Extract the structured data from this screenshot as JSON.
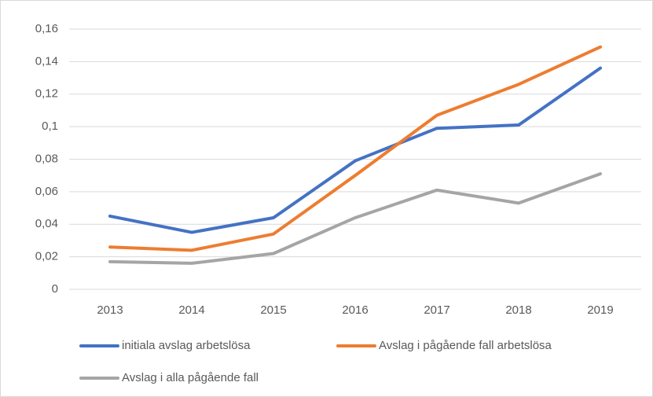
{
  "chart_data": {
    "type": "line",
    "categories": [
      "2013",
      "2014",
      "2015",
      "2016",
      "2017",
      "2018",
      "2019"
    ],
    "series": [
      {
        "name": "initiala avslag arbetslösa",
        "color": "#4472c4",
        "values": [
          0.045,
          0.035,
          0.044,
          0.079,
          0.099,
          0.101,
          0.136
        ]
      },
      {
        "name": "Avslag i pågående fall arbetslösa",
        "color": "#ed7d31",
        "values": [
          0.026,
          0.024,
          0.034,
          0.07,
          0.107,
          0.126,
          0.149
        ]
      },
      {
        "name": "Avslag i alla pågående fall",
        "color": "#a5a5a5",
        "values": [
          0.017,
          0.016,
          0.022,
          0.044,
          0.061,
          0.053,
          0.071
        ]
      }
    ],
    "ylim": [
      0,
      0.16
    ],
    "yticks": [
      0,
      {
        "value": 0.02,
        "label": "0,02"
      },
      {
        "value": 0.04,
        "label": "0,04"
      },
      {
        "value": 0.06,
        "label": "0,06"
      },
      {
        "value": 0.08,
        "label": "0,08"
      },
      {
        "value": 0.1,
        "label": "0,1"
      },
      {
        "value": 0.12,
        "label": "0,12"
      },
      {
        "value": 0.14,
        "label": "0,14"
      },
      {
        "value": 0.16,
        "label": "0,16"
      }
    ],
    "grid": true
  }
}
